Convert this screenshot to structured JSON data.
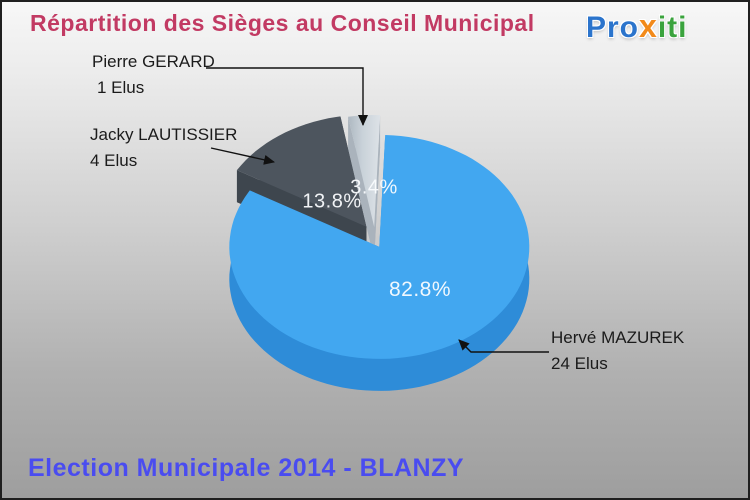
{
  "title": "Répartition des Sièges au Conseil Municipal",
  "logo": {
    "blue": "Pro",
    "orange": "x",
    "green": "iti"
  },
  "footer": "Election Municipale 2014 - BLANZY",
  "chart_data": {
    "type": "pie",
    "title": "Répartition des Sièges au Conseil Municipal",
    "legend_position": "callouts",
    "style": "3d-exploded",
    "slices": [
      {
        "name": "Hervé MAZUREK",
        "seats": 24,
        "seats_label": "24 Elus",
        "percent": 82.8,
        "percent_label": "82.8%",
        "color": "#42a7f0",
        "side_color": "#2e8cd8"
      },
      {
        "name": "Jacky LAUTISSIER",
        "seats": 4,
        "seats_label": "4 Elus",
        "percent": 13.8,
        "percent_label": "13.8%",
        "color": "#4d555e",
        "side_color": "#3e464e"
      },
      {
        "name": "Pierre GERARD",
        "seats": 1,
        "seats_label": "1 Elus",
        "percent": 3.4,
        "percent_label": "3.4%",
        "color": "#c5ced6",
        "side_color": "#aab3bc"
      }
    ]
  }
}
